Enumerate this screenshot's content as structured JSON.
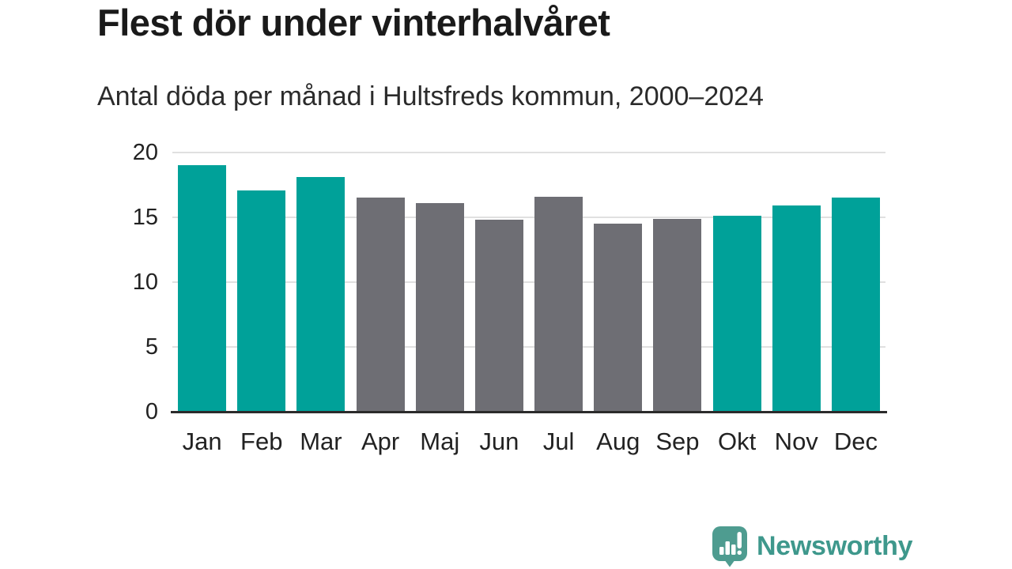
{
  "header": {
    "title": "Flest dör under vinterhalvåret",
    "subtitle": "Antal döda per månad i Hultsfreds kommun, 2000–2024"
  },
  "chart_data": {
    "type": "bar",
    "title": "Flest dör under vinterhalvåret",
    "subtitle": "Antal döda per månad i Hultsfreds kommun, 2000–2024",
    "categories": [
      "Jan",
      "Feb",
      "Mar",
      "Apr",
      "Maj",
      "Jun",
      "Jul",
      "Aug",
      "Sep",
      "Okt",
      "Nov",
      "Dec"
    ],
    "values": [
      19.0,
      17.1,
      18.1,
      16.5,
      16.1,
      14.8,
      16.6,
      14.5,
      14.9,
      15.1,
      15.9,
      16.5
    ],
    "bar_colors": [
      "#00a199",
      "#00a199",
      "#00a199",
      "#6e6e74",
      "#6e6e74",
      "#6e6e74",
      "#6e6e74",
      "#6e6e74",
      "#6e6e74",
      "#00a199",
      "#00a199",
      "#00a199"
    ],
    "highlighted_categories": [
      "Jan",
      "Feb",
      "Mar",
      "Okt",
      "Nov",
      "Dec"
    ],
    "highlight_color": "#00a199",
    "default_color": "#6e6e74",
    "xlabel": "",
    "ylabel": "",
    "ylim": [
      0,
      20
    ],
    "yticks": [
      20,
      15,
      10,
      5,
      0
    ],
    "grid": "horizontal",
    "grid_color": "#e0e0e0",
    "axis_color": "#2b2b2b",
    "legend_position": "none"
  },
  "footer": {
    "brand": "Newsworthy",
    "logo_icon": "speech-bubble-bar-chart-icon",
    "logo_color": "#4e9c90",
    "brand_text_color": "#3e988c"
  }
}
